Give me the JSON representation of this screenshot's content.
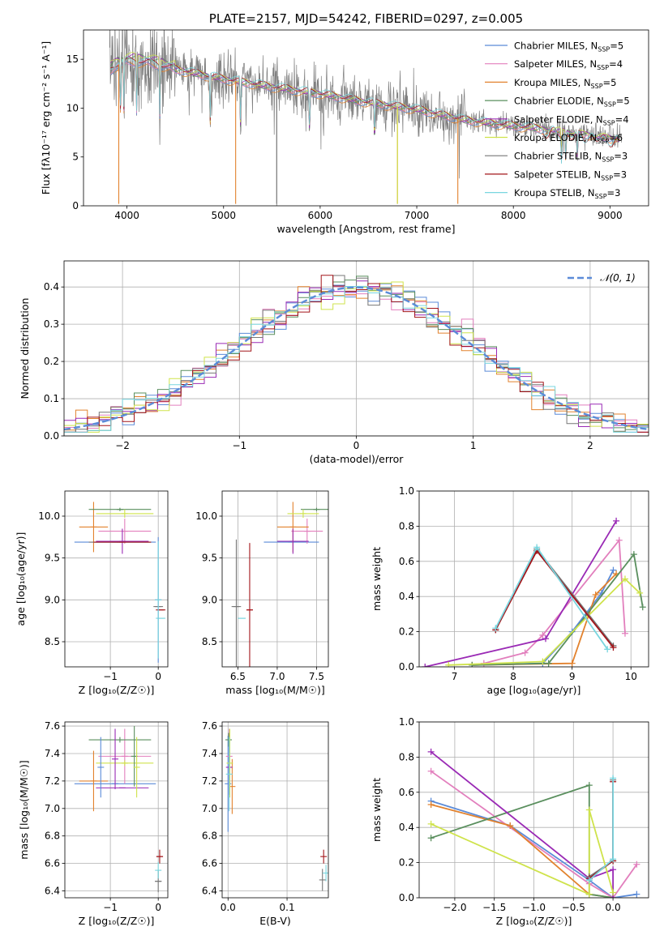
{
  "colors": {
    "Chabrier MILES": "#5b8bd8",
    "Salpeter MILES": "#e27fbd",
    "Kroupa MILES": "#e2822e",
    "Chabrier ELODIE": "#5a8f5e",
    "Salpeter ELODIE": "#9a2ab5",
    "Kroupa ELODIE": "#cfe34b",
    "Chabrier STELIB": "#777777",
    "Salpeter STELIB": "#a3151a",
    "Kroupa STELIB": "#79d6df",
    "normal": "#5b8bd8"
  },
  "chart_data": [
    {
      "id": "spectrum",
      "type": "line",
      "title": "PLATE=2157, MJD=54242, FIBERID=0297, z=0.005",
      "xlabel": "wavelength [Angstrom, rest frame]",
      "ylabel": "Flux [fλ10⁻¹⁷ erg cm⁻² s⁻¹ A⁻¹]",
      "xlim": [
        3550,
        9400
      ],
      "ylim": [
        0,
        18
      ],
      "xticks": [
        "4000",
        "5000",
        "6000",
        "7000",
        "8000",
        "9000"
      ],
      "yticks": [
        "0",
        "5",
        "10",
        "15"
      ],
      "grid": false,
      "legend_position": "top-right",
      "legend": [
        {
          "name": "Chabrier MILES",
          "nssp": "5"
        },
        {
          "name": "Salpeter MILES",
          "nssp": "4"
        },
        {
          "name": "Kroupa MILES",
          "nssp": "5"
        },
        {
          "name": "Chabrier ELODIE",
          "nssp": "5"
        },
        {
          "name": "Salpeter ELODIE",
          "nssp": "4"
        },
        {
          "name": "Kroupa ELODIE",
          "nssp": "6"
        },
        {
          "name": "Chabrier STELIB",
          "nssp": "3"
        },
        {
          "name": "Salpeter STELIB",
          "nssp": "3"
        },
        {
          "name": "Kroupa STELIB",
          "nssp": "3"
        }
      ],
      "continuum": [
        [
          3820,
          13.8
        ],
        [
          3900,
          14.4
        ],
        [
          4000,
          14.8
        ],
        [
          4200,
          14.7
        ],
        [
          4500,
          14.0
        ],
        [
          5000,
          13.0
        ],
        [
          5500,
          12.2
        ],
        [
          6000,
          11.5
        ],
        [
          6500,
          10.6
        ],
        [
          7000,
          9.9
        ],
        [
          7500,
          8.8
        ],
        [
          8000,
          8.2
        ],
        [
          8500,
          7.7
        ],
        [
          9000,
          7.0
        ],
        [
          9120,
          6.8
        ]
      ],
      "absorption_lines": [
        [
          3934,
          9.5
        ],
        [
          3969,
          10.0
        ],
        [
          4101,
          11.5
        ],
        [
          4340,
          11.0
        ],
        [
          4861,
          12.0
        ],
        [
          5175,
          11.0
        ],
        [
          5890,
          11.0
        ],
        [
          6563,
          10.8
        ],
        [
          8498,
          6.8
        ],
        [
          8542,
          6.5
        ],
        [
          8662,
          6.6
        ]
      ],
      "model_drops": [
        {
          "series": "Kroupa MILES",
          "x": 3915
        },
        {
          "series": "Kroupa MILES",
          "x": 5125
        },
        {
          "series": "Kroupa MILES",
          "x": 6800
        },
        {
          "series": "Kroupa MILES",
          "x": 7425
        },
        {
          "series": "Chabrier STELIB",
          "x": 5550
        },
        {
          "series": "Kroupa ELODIE",
          "x": 6800
        }
      ],
      "data_range": [
        3820,
        9120
      ],
      "model_range": [
        3830,
        9100
      ]
    },
    {
      "id": "residuals",
      "type": "step",
      "xlabel": "(data-model)/error",
      "ylabel": "Normed distribution",
      "xlim": [
        -2.5,
        2.5
      ],
      "ylim": [
        0,
        0.47
      ],
      "xticks": [
        "−2",
        "−1",
        "0",
        "1",
        "2"
      ],
      "yticks": [
        "0.0",
        "0.1",
        "0.2",
        "0.3",
        "0.4"
      ],
      "grid": true,
      "legend_position": "top-right",
      "normal_label": "𝒩(0, 1)",
      "bin_width": 0.1,
      "bin_start": -2.5
    },
    {
      "id": "age_vs_z",
      "type": "errorbar",
      "xlabel": "Z [log₁₀(Z/Z☉)]",
      "ylabel": "age  [log₁₀(age/yr)]",
      "xlim": [
        -1.95,
        0.2
      ],
      "ylim": [
        8.2,
        10.3
      ],
      "xticks": [
        [
          "−1",
          -1
        ],
        [
          "0",
          0
        ]
      ],
      "yticks": [
        [
          "8.5",
          8.5
        ],
        [
          "9.0",
          9.0
        ],
        [
          "9.5",
          9.5
        ],
        [
          "10.0",
          10.0
        ]
      ],
      "grid": true,
      "points": [
        {
          "series": "Chabrier MILES",
          "x": -0.9,
          "xerr": 0.85,
          "y": 9.69,
          "yerr": 0.0
        },
        {
          "series": "Salpeter MILES",
          "x": -0.7,
          "xerr": 0.55,
          "y": 9.82,
          "yerr": 0.15
        },
        {
          "series": "Kroupa MILES",
          "x": -1.35,
          "xerr": 0.3,
          "y": 9.87,
          "yerr": 0.3
        },
        {
          "series": "Chabrier ELODIE",
          "x": -0.8,
          "xerr": 0.65,
          "y": 10.08,
          "yerr": 0.02
        },
        {
          "series": "Salpeter ELODIE",
          "x": -0.75,
          "xerr": 0.55,
          "y": 9.7,
          "yerr": 0.15
        },
        {
          "series": "Kroupa ELODIE",
          "x": -0.7,
          "xerr": 0.6,
          "y": 10.03,
          "yerr": 0.05
        },
        {
          "series": "Chabrier STELIB",
          "x": -0.8,
          "xerr": 0.65,
          "y": 9.69,
          "yerr": 0.0
        },
        {
          "series": "Salpeter STELIB",
          "x": -0.75,
          "xerr": 0.6,
          "y": 9.69,
          "yerr": 0.0
        },
        {
          "series": "Chabrier STELIB",
          "x": 0.0,
          "xerr": 0.1,
          "y": 8.92,
          "yerr": 0.0
        },
        {
          "series": "Salpeter STELIB",
          "x": 0.05,
          "xerr": 0.1,
          "y": 8.88,
          "yerr": 0.0
        },
        {
          "series": "Kroupa STELIB",
          "x": 0.05,
          "xerr": 0.1,
          "y": 8.78,
          "yerr": 0.0
        },
        {
          "series": "Chabrier MILES",
          "x": 0.0,
          "xerr": 0.0,
          "y": 9.0,
          "yerr": 0.75
        },
        {
          "series": "Kroupa STELIB",
          "x": 0.0,
          "xerr": 0.0,
          "y": 9.0,
          "yerr": 0.7
        }
      ]
    },
    {
      "id": "age_vs_mass",
      "type": "errorbar",
      "xlabel": "mass [log₁₀(M/M☉)]",
      "ylabel": "",
      "xlim": [
        6.3,
        7.65
      ],
      "ylim": [
        8.2,
        10.3
      ],
      "xticks": [
        [
          "6.5",
          6.5
        ],
        [
          "7.0",
          7.0
        ],
        [
          "7.5",
          7.5
        ]
      ],
      "yticks": [
        [
          "8.5",
          8.5
        ],
        [
          "9.0",
          9.0
        ],
        [
          "9.5",
          9.5
        ],
        [
          "10.0",
          10.0
        ]
      ],
      "grid": true,
      "points": [
        {
          "series": "Chabrier MILES",
          "x": 7.18,
          "xerr": 0.35,
          "y": 9.69,
          "yerr": 0.0
        },
        {
          "series": "Salpeter MILES",
          "x": 7.38,
          "xerr": 0.2,
          "y": 9.82,
          "yerr": 0.15
        },
        {
          "series": "Kroupa MILES",
          "x": 7.2,
          "xerr": 0.2,
          "y": 9.87,
          "yerr": 0.3
        },
        {
          "series": "Chabrier ELODIE",
          "x": 7.5,
          "xerr": 0.2,
          "y": 10.08,
          "yerr": 0.02
        },
        {
          "series": "Salpeter ELODIE",
          "x": 7.2,
          "xerr": 0.2,
          "y": 9.7,
          "yerr": 0.15
        },
        {
          "series": "Kroupa ELODIE",
          "x": 7.33,
          "xerr": 0.2,
          "y": 10.03,
          "yerr": 0.05
        },
        {
          "series": "Chabrier STELIB",
          "x": 6.48,
          "xerr": 0.06,
          "y": 8.92,
          "yerr": 0.8
        },
        {
          "series": "Salpeter STELIB",
          "x": 6.65,
          "xerr": 0.04,
          "y": 8.88,
          "yerr": 0.8
        },
        {
          "series": "Kroupa STELIB",
          "x": 6.55,
          "xerr": 0.05,
          "y": 8.78,
          "yerr": 0.0
        }
      ]
    },
    {
      "id": "weight_vs_age",
      "type": "line",
      "xlabel": "age  [log₁₀(age/yr)]",
      "ylabel": "mass weight",
      "xlim": [
        6.4,
        10.3
      ],
      "ylim": [
        0,
        1
      ],
      "xticks": [
        [
          "7",
          7
        ],
        [
          "8",
          8
        ],
        [
          "9",
          9
        ],
        [
          "10",
          10
        ]
      ],
      "yticks": [
        [
          "0.0",
          0.0
        ],
        [
          "0.2",
          0.2
        ],
        [
          "0.4",
          0.4
        ],
        [
          "0.6",
          0.6
        ],
        [
          "0.8",
          0.8
        ],
        [
          "1.0",
          1.0
        ]
      ],
      "grid": true,
      "series": [
        {
          "name": "Chabrier MILES",
          "x": [
            7.3,
            8.5,
            9.0,
            9.5,
            9.7
          ],
          "y": [
            0.01,
            0.02,
            0.2,
            0.42,
            0.55
          ]
        },
        {
          "name": "Salpeter MILES",
          "x": [
            7.5,
            8.2,
            8.5,
            9.8,
            9.9
          ],
          "y": [
            0.02,
            0.08,
            0.18,
            0.72,
            0.19
          ]
        },
        {
          "name": "Kroupa MILES",
          "x": [
            7.3,
            9.0,
            9.4,
            9.75
          ],
          "y": [
            0.01,
            0.02,
            0.41,
            0.53
          ]
        },
        {
          "name": "Chabrier ELODIE",
          "x": [
            7.3,
            8.6,
            10.05,
            10.2
          ],
          "y": [
            0.01,
            0.02,
            0.64,
            0.34
          ]
        },
        {
          "name": "Salpeter ELODIE",
          "x": [
            6.5,
            8.55,
            9.75
          ],
          "y": [
            0.0,
            0.16,
            0.83
          ]
        },
        {
          "name": "Kroupa ELODIE",
          "x": [
            6.9,
            8.5,
            9.9,
            10.15
          ],
          "y": [
            0.01,
            0.03,
            0.5,
            0.42
          ]
        },
        {
          "name": "Chabrier STELIB",
          "x": [
            7.7,
            8.4,
            9.7
          ],
          "y": [
            0.21,
            0.67,
            0.12
          ]
        },
        {
          "name": "Salpeter STELIB",
          "x": [
            7.7,
            8.4,
            9.7
          ],
          "y": [
            0.21,
            0.66,
            0.11
          ]
        },
        {
          "name": "Kroupa STELIB",
          "x": [
            7.7,
            8.4,
            9.6
          ],
          "y": [
            0.22,
            0.68,
            0.1
          ]
        }
      ]
    },
    {
      "id": "mass_vs_z",
      "type": "errorbar",
      "xlabel": "Z [log₁₀(Z/Z☉)]",
      "ylabel": "mass [log₁₀(M/M☉)]",
      "xlim": [
        -1.95,
        0.2
      ],
      "ylim": [
        6.35,
        7.63
      ],
      "xticks": [
        [
          "−1",
          -1
        ],
        [
          "0",
          0
        ]
      ],
      "yticks": [
        [
          "6.4",
          6.4
        ],
        [
          "6.6",
          6.6
        ],
        [
          "6.8",
          6.8
        ],
        [
          "7.0",
          7.0
        ],
        [
          "7.2",
          7.2
        ],
        [
          "7.4",
          7.4
        ],
        [
          "7.6",
          7.6
        ]
      ],
      "grid": true,
      "points": [
        {
          "series": "Chabrier MILES",
          "x": -0.9,
          "xerr": 0.85,
          "y": 7.18,
          "yerr": 0.0
        },
        {
          "series": "Salpeter MILES",
          "x": -0.7,
          "xerr": 0.55,
          "y": 7.38,
          "yerr": 0.2
        },
        {
          "series": "Kroupa MILES",
          "x": -1.35,
          "xerr": 0.3,
          "y": 7.2,
          "yerr": 0.22
        },
        {
          "series": "Chabrier ELODIE",
          "x": -0.8,
          "xerr": 0.65,
          "y": 7.5,
          "yerr": 0.02
        },
        {
          "series": "Salpeter ELODIE",
          "x": -0.75,
          "xerr": 0.55,
          "y": 7.15,
          "yerr": 0.0
        },
        {
          "series": "Kroupa ELODIE",
          "x": -0.7,
          "xerr": 0.6,
          "y": 7.33,
          "yerr": 0.02
        },
        {
          "series": "Chabrier MILES",
          "x": -1.2,
          "xerr": 0.0,
          "y": 7.3,
          "yerr": 0.22
        },
        {
          "series": "Salpeter ELODIE",
          "x": -0.9,
          "xerr": 0.0,
          "y": 7.36,
          "yerr": 0.22
        },
        {
          "series": "Chabrier ELODIE",
          "x": -0.5,
          "xerr": 0.0,
          "y": 7.38,
          "yerr": 0.22
        },
        {
          "series": "Kroupa ELODIE",
          "x": -0.45,
          "xerr": 0.0,
          "y": 7.3,
          "yerr": 0.22
        },
        {
          "series": "Salpeter STELIB",
          "x": 0.03,
          "xerr": 0.07,
          "y": 6.65,
          "yerr": 0.05
        },
        {
          "series": "Chabrier STELIB",
          "x": 0.0,
          "xerr": 0.07,
          "y": 6.47,
          "yerr": 0.08
        },
        {
          "series": "Kroupa STELIB",
          "x": 0.0,
          "xerr": 0.0,
          "y": 6.55,
          "yerr": 0.06
        }
      ]
    },
    {
      "id": "mass_vs_ebv",
      "type": "errorbar",
      "xlabel": "E(B-V)",
      "ylabel": "",
      "xlim": [
        -0.01,
        0.17
      ],
      "ylim": [
        6.35,
        7.63
      ],
      "xticks": [
        [
          "0.0",
          0.0
        ],
        [
          "0.1",
          0.1
        ]
      ],
      "yticks": [
        [
          "6.4",
          6.4
        ],
        [
          "6.6",
          6.6
        ],
        [
          "6.8",
          6.8
        ],
        [
          "7.0",
          7.0
        ],
        [
          "7.2",
          7.2
        ],
        [
          "7.4",
          7.4
        ],
        [
          "7.6",
          7.6
        ]
      ],
      "grid": true,
      "points": [
        {
          "series": "Chabrier MILES",
          "x": 0.0,
          "xerr": 0.0,
          "y": 7.18,
          "yerr": 0.35
        },
        {
          "series": "Salpeter MILES",
          "x": 0.002,
          "xerr": 0.0,
          "y": 7.38,
          "yerr": 0.2
        },
        {
          "series": "Kroupa MILES",
          "x": 0.007,
          "xerr": 0.0,
          "y": 7.16,
          "yerr": 0.2
        },
        {
          "series": "Chabrier ELODIE",
          "x": 0.001,
          "xerr": 0.0,
          "y": 7.5,
          "yerr": 0.05
        },
        {
          "series": "Salpeter ELODIE",
          "x": 0.002,
          "xerr": 0.0,
          "y": 7.3,
          "yerr": 0.2
        },
        {
          "series": "Kroupa ELODIE",
          "x": 0.003,
          "xerr": 0.0,
          "y": 7.33,
          "yerr": 0.25
        },
        {
          "series": "Kroupa STELIB",
          "x": 0.002,
          "xerr": 0.0,
          "y": 7.25,
          "yerr": 0.27
        },
        {
          "series": "Chabrier STELIB",
          "x": 0.16,
          "xerr": 0.0,
          "y": 6.48,
          "yerr": 0.08
        },
        {
          "series": "Salpeter STELIB",
          "x": 0.162,
          "xerr": 0.0,
          "y": 6.65,
          "yerr": 0.05
        },
        {
          "series": "Kroupa STELIB",
          "x": 0.166,
          "xerr": 0.0,
          "y": 6.53,
          "yerr": 0.06
        }
      ]
    },
    {
      "id": "weight_vs_z",
      "type": "line",
      "xlabel": "Z [log₁₀(Z/Z☉)]",
      "ylabel": "mass weight",
      "xlim": [
        -2.45,
        0.45
      ],
      "ylim": [
        0,
        1
      ],
      "xticks": [
        [
          "−2.0",
          -2.0
        ],
        [
          "−1.5",
          -1.5
        ],
        [
          "−1.0",
          -1.0
        ],
        [
          "−0.5",
          -0.5
        ],
        [
          "0.0",
          0.0
        ]
      ],
      "yticks": [
        [
          "0.0",
          0.0
        ],
        [
          "0.2",
          0.2
        ],
        [
          "0.4",
          0.4
        ],
        [
          "0.6",
          0.6
        ],
        [
          "0.8",
          0.8
        ],
        [
          "1.0",
          1.0
        ]
      ],
      "grid": true,
      "series": [
        {
          "name": "Chabrier MILES",
          "x": [
            -2.3,
            -1.3,
            -0.3,
            0.0,
            0.3
          ],
          "y": [
            0.55,
            0.41,
            0.1,
            0.0,
            0.02
          ]
        },
        {
          "name": "Salpeter MILES",
          "x": [
            -2.3,
            -0.3,
            0.0,
            0.3
          ],
          "y": [
            0.72,
            0.08,
            0.0,
            0.19
          ]
        },
        {
          "name": "Kroupa MILES",
          "x": [
            -2.3,
            -1.3,
            -0.3,
            0.0
          ],
          "y": [
            0.53,
            0.41,
            0.02,
            0.0
          ]
        },
        {
          "name": "Chabrier ELODIE",
          "x": [
            -2.3,
            -0.3,
            -0.3,
            0.0
          ],
          "y": [
            0.34,
            0.64,
            0.02,
            0.0
          ]
        },
        {
          "name": "Salpeter ELODIE",
          "x": [
            -2.3,
            -0.3,
            0.0,
            0.0
          ],
          "y": [
            0.83,
            0.11,
            0.16,
            0.0
          ]
        },
        {
          "name": "Kroupa ELODIE",
          "x": [
            -2.3,
            -0.3,
            -0.3,
            0.0
          ],
          "y": [
            0.42,
            0.02,
            0.5,
            0.03
          ]
        },
        {
          "name": "Chabrier STELIB",
          "x": [
            -0.3,
            0.0,
            0.0
          ],
          "y": [
            0.12,
            0.21,
            0.67
          ]
        },
        {
          "name": "Salpeter STELIB",
          "x": [
            -0.3,
            0.0,
            0.0
          ],
          "y": [
            0.11,
            0.21,
            0.66
          ]
        },
        {
          "name": "Kroupa STELIB",
          "x": [
            -0.3,
            0.0,
            0.0
          ],
          "y": [
            0.1,
            0.22,
            0.68
          ]
        }
      ]
    }
  ]
}
